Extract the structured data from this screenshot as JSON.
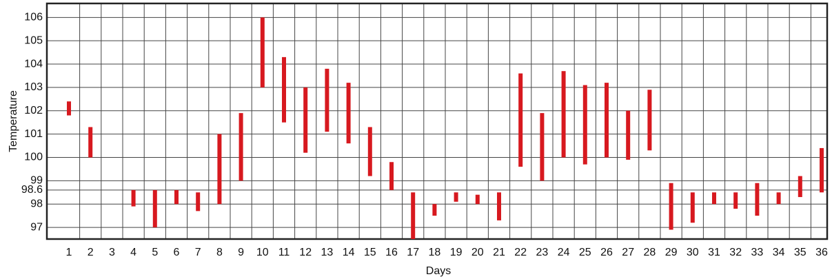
{
  "chart_data": {
    "type": "range-bar",
    "x_label": "Days",
    "y_label": "Temperature",
    "categories": [
      "1",
      "2",
      "3",
      "4",
      "5",
      "6",
      "7",
      "8",
      "9",
      "10",
      "11",
      "12",
      "13",
      "14",
      "15",
      "16",
      "17",
      "18",
      "19",
      "20",
      "21",
      "22",
      "23",
      "24",
      "25",
      "26",
      "27",
      "28",
      "29",
      "30",
      "31",
      "32",
      "33",
      "34",
      "35",
      "36"
    ],
    "ranges": [
      [
        101.8,
        102.4
      ],
      [
        100,
        101.3
      ],
      null,
      [
        97.9,
        98.6
      ],
      [
        97,
        98.6
      ],
      [
        98,
        98.6
      ],
      [
        97.7,
        98.5
      ],
      [
        98,
        101
      ],
      [
        99,
        101.9
      ],
      [
        103,
        106
      ],
      [
        101.5,
        104.3
      ],
      [
        100.2,
        103
      ],
      [
        101.1,
        103.8
      ],
      [
        100.6,
        103.2
      ],
      [
        99.2,
        101.3
      ],
      [
        98.6,
        99.8
      ],
      [
        96.5,
        98.5
      ],
      [
        97.5,
        98
      ],
      [
        98.1,
        98.5
      ],
      [
        98,
        98.4
      ],
      [
        97.3,
        98.5
      ],
      [
        99.6,
        103.6
      ],
      [
        99,
        101.9
      ],
      [
        100,
        103.7
      ],
      [
        99.7,
        103.1
      ],
      [
        100,
        103.2
      ],
      [
        99.9,
        102
      ],
      [
        100.3,
        102.9
      ],
      [
        96.9,
        98.9
      ],
      [
        97.2,
        98.5
      ],
      [
        98,
        98.5
      ],
      [
        97.8,
        98.5
      ],
      [
        97.5,
        98.9
      ],
      [
        98,
        98.5
      ],
      [
        98.3,
        99.2
      ],
      [
        98.5,
        100.4
      ]
    ],
    "color": "#d7191f",
    "ylim": [
      96.5,
      106.6
    ],
    "yticks": [
      97,
      98,
      98.6,
      99,
      100,
      101,
      102,
      103,
      104,
      105,
      106
    ],
    "grid": true
  }
}
